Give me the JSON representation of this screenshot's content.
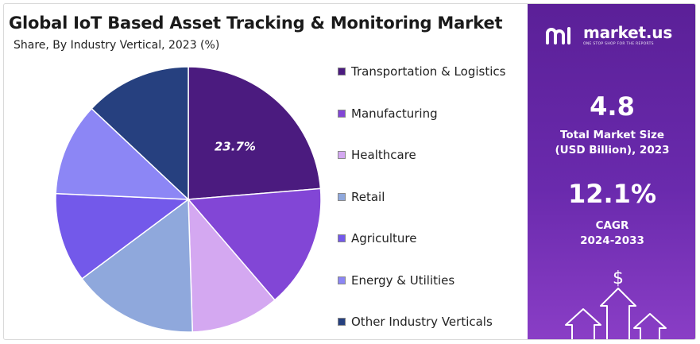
{
  "chart_data": {
    "type": "pie",
    "title": "Global IoT Based Asset Tracking & Monitoring Market",
    "subtitle": "Share, By Industry Vertical, 2023 (%)",
    "categories": [
      "Transportation & Logistics",
      "Manufacturing",
      "Healthcare",
      "Retail",
      "Agriculture",
      "Energy & Utilities",
      "Other Industry Verticals"
    ],
    "values": [
      23.7,
      15.0,
      10.8,
      15.3,
      10.9,
      11.3,
      13.0
    ],
    "colors": [
      "#4b1b7f",
      "#8246d6",
      "#d4a8f1",
      "#8fa8dc",
      "#7359ea",
      "#8c86f5",
      "#26407f"
    ],
    "data_labels": [
      {
        "index": 0,
        "text": "23.7%"
      }
    ],
    "legend_position": "right"
  },
  "side_panel": {
    "brand_name": "market.us",
    "brand_tagline": "ONE STOP SHOP FOR THE REPORTS",
    "market_size_value": "4.8",
    "market_size_label_1": "Total Market Size",
    "market_size_label_2": "(USD Billion), 2023",
    "cagr_value": "12.1%",
    "cagr_label_1": "CAGR",
    "cagr_label_2": "2024-2033",
    "dollar_symbol": "$"
  }
}
